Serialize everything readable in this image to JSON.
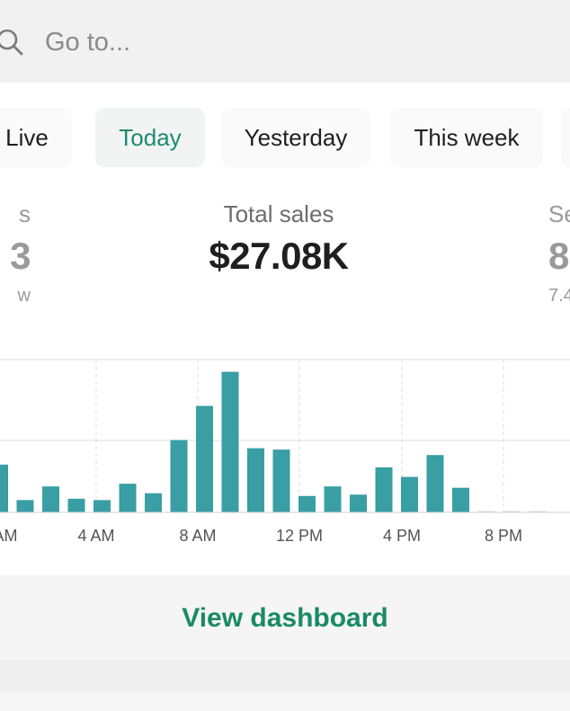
{
  "search": {
    "placeholder": "Go to..."
  },
  "tabs": [
    {
      "label": "Live",
      "active": false
    },
    {
      "label": "Today",
      "active": true
    },
    {
      "label": "Yesterday",
      "active": false
    },
    {
      "label": "This week",
      "active": false
    }
  ],
  "metrics": [
    {
      "label": "s",
      "value": "3",
      "sub": "w"
    },
    {
      "label": "Total sales",
      "value": "$27.08K",
      "sub": ""
    },
    {
      "label": "Se",
      "value": "8",
      "sub": "7.4"
    }
  ],
  "chart_data": {
    "type": "bar",
    "x_tick_labels": [
      "AM",
      "4 AM",
      "8 AM",
      "12 PM",
      "4 PM",
      "8 PM"
    ],
    "values": [
      0.35,
      0.09,
      0.19,
      0.1,
      0.09,
      0.21,
      0.14,
      0.53,
      0.78,
      1.03,
      0.47,
      0.46,
      0.12,
      0.19,
      0.13,
      0.33,
      0.26,
      0.42,
      0.18,
      0.0,
      0.0,
      0.0
    ],
    "ylim": [
      0,
      1.1
    ],
    "bar_color": "#3a9ea5",
    "grid": true
  },
  "dashboard": {
    "label": "View dashboard"
  },
  "colors": {
    "accent": "#1b8a66",
    "bar": "#3a9ea5"
  }
}
